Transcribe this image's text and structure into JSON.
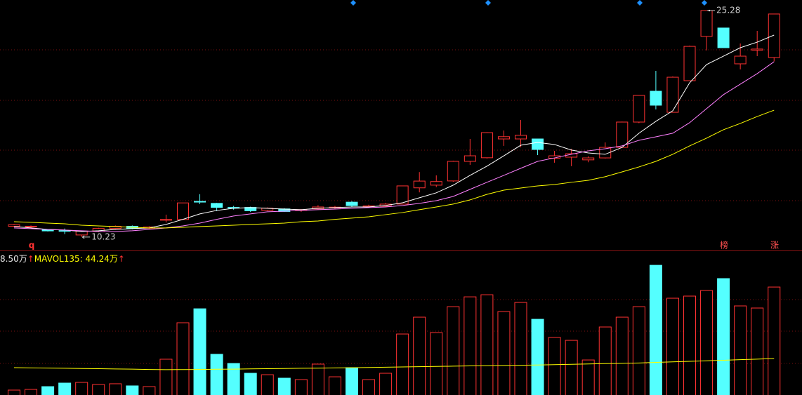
{
  "chart_data": {
    "type": "candlestick",
    "up_color": "#ff3232",
    "down_color": "#54ffff",
    "ylim": [
      9.34,
      25.98
    ],
    "candles": {
      "open": [
        10.95,
        10.9,
        10.72,
        10.66,
        10.37,
        10.6,
        10.8,
        10.95,
        10.82,
        11.35,
        11.4,
        12.6,
        12.47,
        12.2,
        12.2,
        12.0,
        12.1,
        12.0,
        12.1,
        12.2,
        12.55,
        12.25,
        12.28,
        12.42,
        13.5,
        13.68,
        13.96,
        15.26,
        15.5,
        16.75,
        16.75,
        16.75,
        15.47,
        15.54,
        15.36,
        15.49,
        16.19,
        17.87,
        19.92,
        18.52,
        20.62,
        23.56,
        24.12,
        21.74,
        22.65,
        22.16
      ],
      "high": [
        11.1,
        11.0,
        10.75,
        10.8,
        10.66,
        10.85,
        11.0,
        11.0,
        10.95,
        11.72,
        12.5,
        13.08,
        12.5,
        12.3,
        12.25,
        12.2,
        12.15,
        12.1,
        12.35,
        12.3,
        12.62,
        12.38,
        12.5,
        13.63,
        14.55,
        14.33,
        15.3,
        16.75,
        17.2,
        17.31,
        18.01,
        16.75,
        15.96,
        16.1,
        15.6,
        16.52,
        17.9,
        19.65,
        21.27,
        20.9,
        22.95,
        25.28,
        24.12,
        23.09,
        23.93,
        25.05
      ],
      "low": [
        10.9,
        10.85,
        10.6,
        10.43,
        10.23,
        10.55,
        10.75,
        10.75,
        10.78,
        11.2,
        11.4,
        12.42,
        11.95,
        12.05,
        11.9,
        11.95,
        11.9,
        11.9,
        12.05,
        12.1,
        12.25,
        12.2,
        12.22,
        12.4,
        13.2,
        13.55,
        13.9,
        15.03,
        15.45,
        16.29,
        16.19,
        15.68,
        15.17,
        14.94,
        15.2,
        15.45,
        16.15,
        17.8,
        18.71,
        18.5,
        20.6,
        22.63,
        22.81,
        21.37,
        22.25,
        21.9
      ],
      "close": [
        11.05,
        10.95,
        10.64,
        10.62,
        10.63,
        10.8,
        10.95,
        10.8,
        10.9,
        11.4,
        12.5,
        12.57,
        12.2,
        12.15,
        11.98,
        12.15,
        11.93,
        12.05,
        12.23,
        12.22,
        12.32,
        12.3,
        12.42,
        13.63,
        13.95,
        13.92,
        15.26,
        15.63,
        17.17,
        16.9,
        16.99,
        16.05,
        15.63,
        15.77,
        15.49,
        16.19,
        17.87,
        19.64,
        18.99,
        20.85,
        22.9,
        25.28,
        22.81,
        22.25,
        22.72,
        25.05
      ]
    },
    "ma": [
      {
        "color": "#ffffff",
        "values": [
          10.93,
          10.84,
          10.74,
          10.7,
          10.6,
          10.65,
          10.74,
          10.79,
          10.84,
          11.07,
          11.41,
          11.77,
          12.0,
          12.14,
          12.19,
          12.14,
          12.09,
          12.05,
          12.14,
          12.19,
          12.23,
          12.23,
          12.33,
          12.51,
          12.84,
          13.17,
          13.68,
          14.33,
          14.94,
          15.63,
          16.33,
          16.52,
          16.38,
          16.01,
          15.82,
          15.73,
          16.19,
          17.13,
          17.92,
          18.62,
          20.48,
          21.69,
          22.25,
          22.81,
          23.18,
          23.65
        ]
      },
      {
        "color": "#ff80ff",
        "values": [
          10.84,
          10.79,
          10.74,
          10.7,
          10.65,
          10.6,
          10.6,
          10.65,
          10.74,
          10.84,
          10.97,
          11.16,
          11.41,
          11.63,
          11.77,
          11.91,
          11.95,
          12.0,
          12.05,
          12.09,
          12.14,
          12.19,
          12.23,
          12.33,
          12.47,
          12.65,
          12.93,
          13.4,
          13.87,
          14.33,
          14.8,
          15.26,
          15.49,
          15.73,
          15.96,
          16.1,
          16.29,
          16.66,
          16.89,
          17.13,
          17.83,
          18.76,
          19.69,
          20.39,
          21.09,
          21.88
        ]
      },
      {
        "color": "#ffff00",
        "values": [
          11.25,
          11.21,
          11.16,
          11.11,
          11.02,
          10.97,
          10.93,
          10.88,
          10.84,
          10.84,
          10.88,
          10.93,
          10.97,
          11.02,
          11.07,
          11.11,
          11.16,
          11.25,
          11.3,
          11.41,
          11.49,
          11.58,
          11.72,
          11.86,
          12.05,
          12.23,
          12.42,
          12.7,
          13.07,
          13.35,
          13.49,
          13.63,
          13.72,
          13.87,
          14.0,
          14.24,
          14.56,
          14.89,
          15.26,
          15.73,
          16.29,
          16.8,
          17.36,
          17.78,
          18.24,
          18.66
        ]
      }
    ],
    "volume": {
      "ylim": [
        0,
        211
      ],
      "values": [
        7.2,
        8.2,
        12.3,
        17.5,
        18.5,
        15.4,
        16.5,
        13.4,
        12.3,
        52.5,
        106,
        126.5,
        59.7,
        46.3,
        31.9,
        29.8,
        24.7,
        22.6,
        45.3,
        26.7,
        40.1,
        22.6,
        31.9,
        89.5,
        114.2,
        91.6,
        129.6,
        144,
        147.1,
        122.4,
        135.8,
        111.1,
        84.4,
        80.2,
        51.4,
        99.8,
        114.2,
        129.6,
        190.3,
        142,
        145.1,
        153.3,
        170.8,
        130.7,
        127.6,
        158.4
      ],
      "mavol": {
        "color": "#ffff00",
        "values": [
          40.1,
          39.8,
          39.5,
          39.2,
          38.9,
          38.6,
          38.2,
          37.9,
          37.5,
          37.2,
          37.3,
          37.5,
          37.8,
          38.0,
          38.3,
          38.6,
          38.9,
          39.2,
          39.4,
          39.7,
          40.0,
          40.4,
          40.8,
          41.2,
          41.5,
          41.9,
          42.3,
          42.7,
          43.0,
          43.3,
          43.6,
          44.0,
          44.5,
          45.0,
          45.5,
          46.0,
          46.5,
          47.0,
          47.8,
          48.6,
          49.4,
          50.2,
          51.0,
          51.8,
          52.6,
          53.5
        ]
      },
      "legend": [
        {
          "text": "8.50万",
          "arrow": "↑",
          "color": "#e8e8e8"
        },
        {
          "text": "MAVOL135: 44.24万",
          "arrow": "↑",
          "color": "#ffff00"
        }
      ]
    },
    "markers": [
      "q",
      "榜",
      "涨"
    ]
  }
}
